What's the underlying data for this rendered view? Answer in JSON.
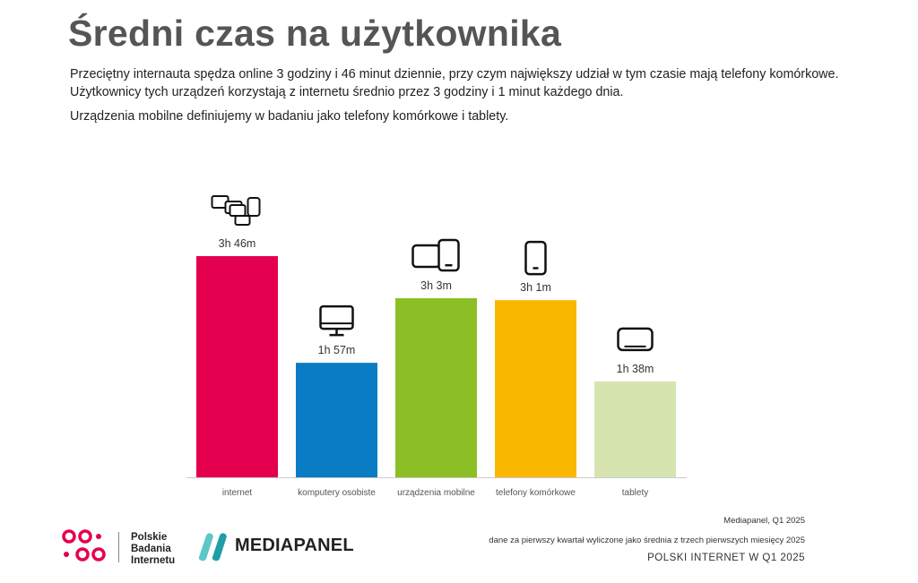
{
  "title": "Średni czas na użytkownika",
  "description": [
    "Przeciętny internauta spędza online 3 godziny i 46 minut dziennie, przy czym największy udział w tym czasie mają telefony komórkowe. Użytkownicy tych urządzeń korzystają z internetu średnio przez 3 godziny i 1 minut każdego dnia.",
    "Urządzenia mobilne definiujemy w badaniu jako telefony komórkowe i tablety."
  ],
  "chart_data": {
    "type": "bar",
    "categories": [
      "internet",
      "komputery osobiste",
      "urządzenia mobilne",
      "telefony komórkowe",
      "tablety"
    ],
    "values": [
      226,
      117,
      183,
      181,
      98
    ],
    "value_unit": "minutes",
    "data_labels": [
      "3h 46m",
      "1h 57m",
      "3h 3m",
      "3h 1m",
      "1h 38m"
    ],
    "colors": [
      "#e4004f",
      "#0a7cc4",
      "#8bbf25",
      "#f9b700",
      "#d6e5b0"
    ],
    "icons": [
      "devices-group-icon",
      "desktop-monitor-icon",
      "tablet-and-phone-icon",
      "phone-icon",
      "tablet-landscape-icon"
    ],
    "ylim": [
      0,
      226
    ],
    "grid": false,
    "legend": "none",
    "title": "",
    "xlabel": "",
    "ylabel": ""
  },
  "footer": {
    "source": "Mediapanel, Q1 2025",
    "note": "dane za pierwszy kwartał wyliczone jako średnia z trzech pierwszych miesięcy 2025",
    "report": "POLSKI INTERNET W Q1 2025"
  },
  "logos": {
    "pbi_lines": [
      "Polskie",
      "Badania",
      "Internetu"
    ],
    "mediapanel": "MEDIAPANEL"
  },
  "colors": {
    "pbi": "#e4004f",
    "mediapanel": "#5cc6c9",
    "axis": "#cccccc"
  }
}
